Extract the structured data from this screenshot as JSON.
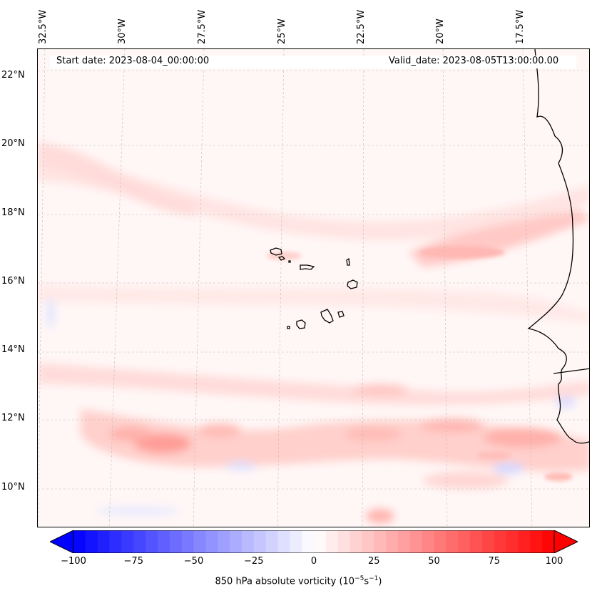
{
  "map": {
    "start_date": "Start date: 2023-08-04_00:00:00",
    "valid_date": "Valid_date: 2023-08-05T13:00:00.00",
    "lon_labels": [
      "32.5°W",
      "30°W",
      "27.5°W",
      "25°W",
      "22.5°W",
      "20°W",
      "17.5°W"
    ],
    "lat_labels": [
      "22°N",
      "20°N",
      "18°N",
      "16°N",
      "14°N",
      "12°N",
      "10°N"
    ]
  },
  "colorbar": {
    "ticks": [
      "−100",
      "−75",
      "−50",
      "−25",
      "0",
      "25",
      "50",
      "75",
      "100"
    ],
    "label_prefix": "850 hPa absolute vorticity (10",
    "label_exp1": "−5",
    "label_mid": "s",
    "label_exp2": "−1",
    "label_suffix": ")",
    "min": -100,
    "max": 100,
    "color_min": "#0000ff",
    "color_mid": "#ffffff",
    "color_max": "#ff0000"
  }
}
